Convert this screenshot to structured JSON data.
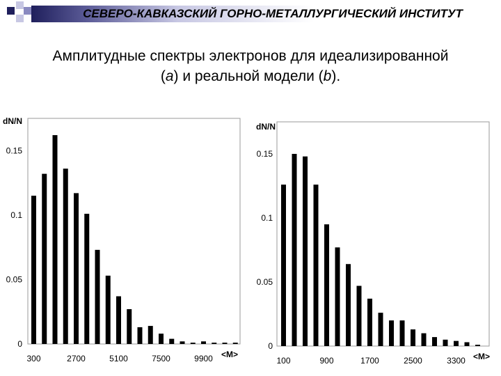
{
  "header": {
    "title": "СЕВЕРО-КАВКАЗСКИЙ ГОРНО-МЕТАЛЛУРГИЧЕСКИЙ ИНСТИТУТ",
    "accent_color": "#1f1f5c",
    "light_color": "#c7c7e3"
  },
  "slide": {
    "title_line1": "Амплитудные спектры электронов для идеализированной",
    "title_open": "(",
    "title_a": "a",
    "title_mid": ") и реальной модели (",
    "title_b": "b",
    "title_close": ")."
  },
  "chart_data": [
    {
      "type": "bar",
      "ylabel": "dN/N",
      "xlabel": "<M>",
      "y_ticks": [
        0,
        0.05,
        0.1,
        0.15
      ],
      "y_tick_labels": [
        "0",
        "0.05",
        "0.1",
        "0.15"
      ],
      "x_tick_labels": [
        "300",
        "2700",
        "5100",
        "7500",
        "9900"
      ],
      "x_tick_bar_index": [
        0,
        4,
        8,
        12,
        16
      ],
      "ylim": [
        0,
        0.175
      ],
      "grid": false,
      "bar_color": "#000000",
      "values": [
        0.115,
        0.132,
        0.162,
        0.136,
        0.117,
        0.101,
        0.073,
        0.053,
        0.037,
        0.027,
        0.013,
        0.014,
        0.008,
        0.004,
        0.002,
        0.001,
        0.002,
        0.001,
        0.001,
        0.001
      ]
    },
    {
      "type": "bar",
      "ylabel": "dN/N",
      "xlabel": "<M>",
      "y_ticks": [
        0,
        0.05,
        0.1,
        0.15
      ],
      "y_tick_labels": [
        "0",
        "0.05",
        "0.1",
        "0.15"
      ],
      "x_tick_labels": [
        "100",
        "900",
        "1700",
        "2500",
        "3300"
      ],
      "x_tick_bar_index": [
        0,
        4,
        8,
        12,
        16
      ],
      "ylim": [
        0,
        0.175
      ],
      "grid": false,
      "bar_color": "#000000",
      "values": [
        0.126,
        0.15,
        0.148,
        0.126,
        0.095,
        0.077,
        0.064,
        0.047,
        0.037,
        0.026,
        0.02,
        0.02,
        0.013,
        0.01,
        0.007,
        0.005,
        0.004,
        0.003,
        0.001
      ]
    }
  ]
}
